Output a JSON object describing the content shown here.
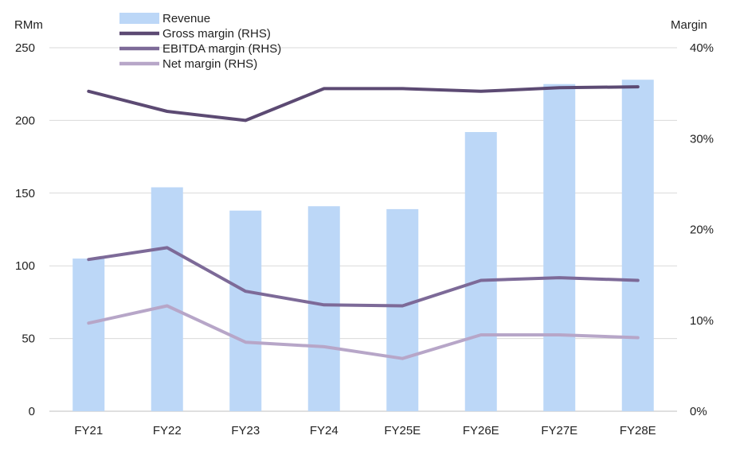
{
  "chart_data": {
    "type": "bar+line",
    "title": "",
    "categories": [
      "FY21",
      "FY22",
      "FY23",
      "FY24",
      "FY25E",
      "FY26E",
      "FY27E",
      "FY28E"
    ],
    "y_left": {
      "label": "RMm",
      "range": [
        0,
        250
      ],
      "ticks": [
        "0",
        "50",
        "100",
        "150",
        "200",
        "250"
      ],
      "tick_values": [
        0,
        50,
        100,
        150,
        200,
        250
      ]
    },
    "y_right": {
      "label": "Margin",
      "range": [
        0,
        40
      ],
      "ticks": [
        "0%",
        "10%",
        "20%",
        "30%",
        "40%"
      ],
      "tick_values": [
        0,
        10,
        20,
        30,
        40
      ]
    },
    "grid": true,
    "legend_position": "top-left",
    "series": [
      {
        "name": "Revenue",
        "kind": "bar",
        "axis": "left",
        "color": "#bcd7f7",
        "values": [
          105,
          154,
          138,
          141,
          139,
          192,
          225,
          228
        ]
      },
      {
        "name": "Gross margin (RHS)",
        "kind": "line",
        "axis": "right",
        "color": "#5c4a73",
        "values": [
          35.2,
          33.0,
          32.0,
          35.5,
          35.5,
          35.2,
          35.6,
          35.7
        ]
      },
      {
        "name": "EBITDA margin (RHS)",
        "kind": "line",
        "axis": "right",
        "color": "#7d6a98",
        "values": [
          16.7,
          18.0,
          13.2,
          11.7,
          11.6,
          14.4,
          14.7,
          14.4
        ]
      },
      {
        "name": "Net margin (RHS)",
        "kind": "line",
        "axis": "right",
        "color": "#b7a6c8",
        "values": [
          9.7,
          11.6,
          7.6,
          7.1,
          5.8,
          8.4,
          8.4,
          8.1
        ]
      }
    ]
  }
}
